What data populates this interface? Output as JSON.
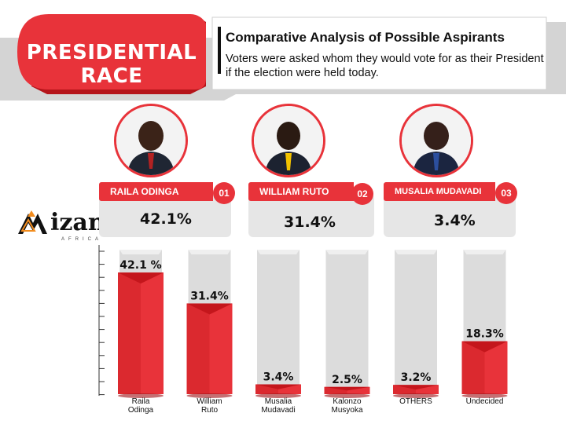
{
  "header": {
    "race_line1": "PRESIDENTIAL",
    "race_line2": "RACE",
    "title": "Comparative Analysis of Possible Aspirants",
    "subtitle_line1": "Voters were asked whom they would vote for as their President",
    "subtitle_line2": "if the election were held today."
  },
  "brand": {
    "logo_main": "Mizani",
    "logo_sub": "AFRICA",
    "accent": "#e8333a",
    "accent_dark": "#c4161c"
  },
  "candidates": [
    {
      "name": "RAILA ODINGA",
      "number": "01",
      "percent": "42.1%",
      "icon": "portrait-raila-odinga"
    },
    {
      "name": "WILLIAM RUTO",
      "number": "02",
      "percent": "31.4%",
      "icon": "portrait-william-ruto"
    },
    {
      "name": "MUSALIA MUDAVADI",
      "number": "03",
      "percent": "3.4%",
      "icon": "portrait-musalia-mudavadi"
    }
  ],
  "chart_data": {
    "type": "bar",
    "categories": [
      [
        "Raila",
        "Odinga"
      ],
      [
        "William",
        "Ruto"
      ],
      [
        "Musalia",
        "Mudavadi"
      ],
      [
        "Kalonzo",
        "Musyoka"
      ],
      [
        "OTHERS"
      ],
      [
        "Undecided"
      ]
    ],
    "values": [
      42.1,
      31.4,
      3.4,
      2.5,
      3.2,
      18.3
    ],
    "value_labels": [
      "42.1 %",
      "31.4%",
      "3.4%",
      "2.5%",
      "3.2%",
      "18.3%"
    ],
    "ylim": [
      0,
      50
    ],
    "grid": false,
    "legend": "none"
  }
}
